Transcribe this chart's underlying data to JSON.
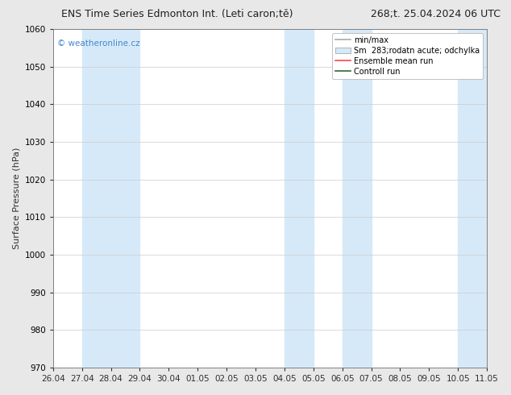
{
  "title_left": "ENS Time Series Edmonton Int. (Leti caron;tě)",
  "title_right": "268;t. 25.04.2024 06 UTC",
  "ylabel": "Surface Pressure (hPa)",
  "ylim": [
    970,
    1060
  ],
  "yticks": [
    970,
    980,
    990,
    1000,
    1010,
    1020,
    1030,
    1040,
    1050,
    1060
  ],
  "xlim_start": 0,
  "xlim_end": 15,
  "xtick_labels": [
    "26.04",
    "27.04",
    "28.04",
    "29.04",
    "30.04",
    "01.05",
    "02.05",
    "03.05",
    "04.05",
    "05.05",
    "06.05",
    "07.05",
    "08.05",
    "09.05",
    "10.05",
    "11.05"
  ],
  "shaded_bands": [
    {
      "xmin": 1.0,
      "xmax": 3.0,
      "color": "#d6e9f8",
      "alpha": 1.0
    },
    {
      "xmin": 8.0,
      "xmax": 9.0,
      "color": "#d6e9f8",
      "alpha": 1.0
    },
    {
      "xmin": 10.0,
      "xmax": 11.0,
      "color": "#d6e9f8",
      "alpha": 1.0
    },
    {
      "xmin": 14.0,
      "xmax": 15.0,
      "color": "#d6e9f8",
      "alpha": 1.0
    }
  ],
  "watermark": "© weatheronline.cz",
  "watermark_color": "#4488cc",
  "legend_entries": [
    {
      "label": "min/max",
      "color": "#aaaaaa",
      "type": "line"
    },
    {
      "label": "Sm  283;rodatn acute; odchylka",
      "color": "#d6e9f8",
      "type": "rect"
    },
    {
      "label": "Ensemble mean run",
      "color": "#ff4444",
      "type": "line"
    },
    {
      "label": "Controll run",
      "color": "#336633",
      "type": "line"
    }
  ],
  "bg_color": "#e8e8e8",
  "plot_bg_color": "#ffffff",
  "border_color": "#808080",
  "tick_color": "#303030",
  "title_fontsize": 9,
  "label_fontsize": 8,
  "tick_fontsize": 7.5
}
